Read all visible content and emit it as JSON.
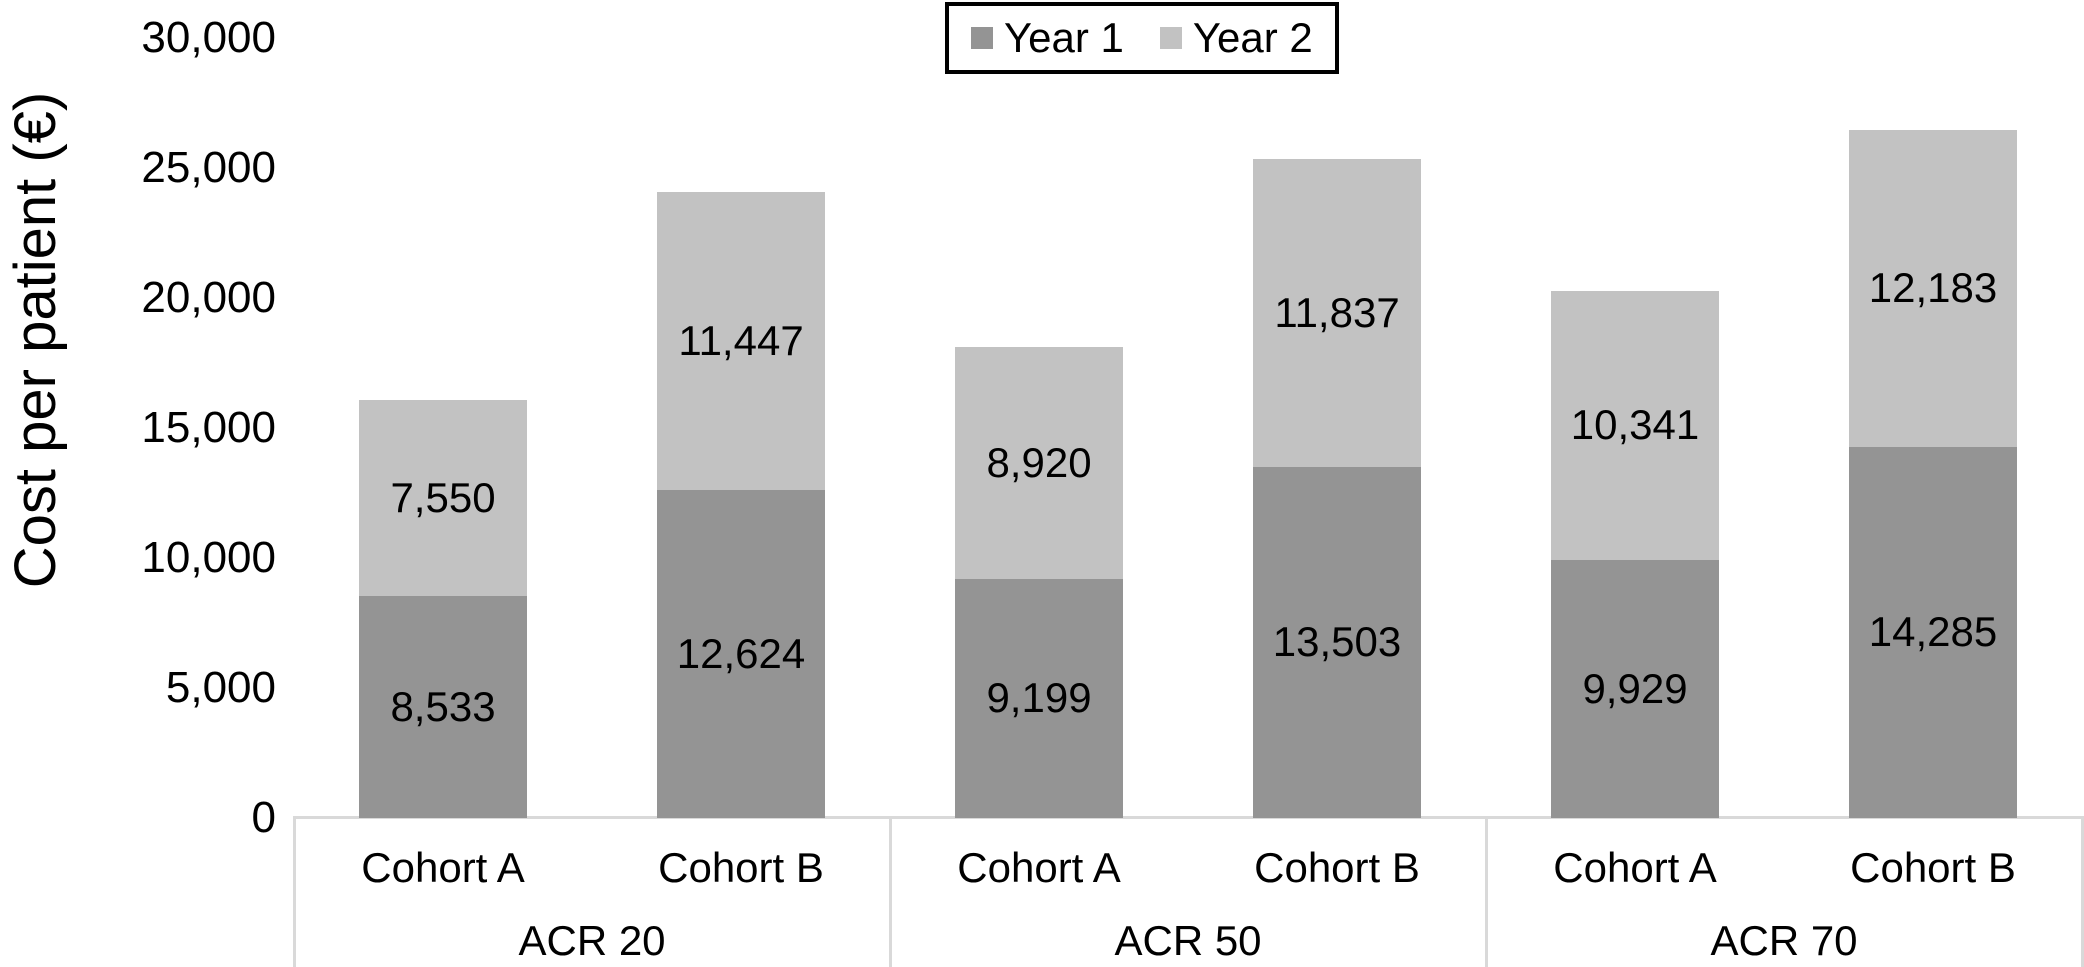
{
  "chart_data": {
    "type": "bar",
    "stacked": true,
    "title": "",
    "xlabel": "",
    "ylabel": "Cost per patient (€)",
    "ylim": [
      0,
      30000
    ],
    "ytick_interval": 5000,
    "grid": false,
    "legend_position": "top-center",
    "yticks": [
      {
        "label": "0",
        "value": 0
      },
      {
        "label": "5,000",
        "value": 5000
      },
      {
        "label": "10,000",
        "value": 10000
      },
      {
        "label": "15,000",
        "value": 15000
      },
      {
        "label": "20,000",
        "value": 20000
      },
      {
        "label": "25,000",
        "value": 25000
      },
      {
        "label": "30,000",
        "value": 30000
      }
    ],
    "groups": [
      {
        "label": "ACR 20",
        "categories": [
          "Cohort A",
          "Cohort B"
        ]
      },
      {
        "label": "ACR 50",
        "categories": [
          "Cohort A",
          "Cohort B"
        ]
      },
      {
        "label": "ACR 70",
        "categories": [
          "Cohort A",
          "Cohort B"
        ]
      }
    ],
    "series": [
      {
        "name": "Year 1",
        "color": "#949494",
        "values": [
          8533,
          12624,
          9199,
          13503,
          9929,
          14285
        ],
        "labels": [
          "8,533",
          "12,624",
          "9,199",
          "13,503",
          "9,929",
          "14,285"
        ]
      },
      {
        "name": "Year 2",
        "color": "#c2c2c2",
        "values": [
          7550,
          11447,
          8920,
          11837,
          10341,
          12183
        ],
        "labels": [
          "7,550",
          "11,447",
          "8,920",
          "11,837",
          "10,341",
          "12,183"
        ]
      }
    ],
    "colors": {
      "axis_line": "#d9d9d9",
      "text": "#000000",
      "legend_border": "#000000",
      "background": "#ffffff"
    }
  }
}
